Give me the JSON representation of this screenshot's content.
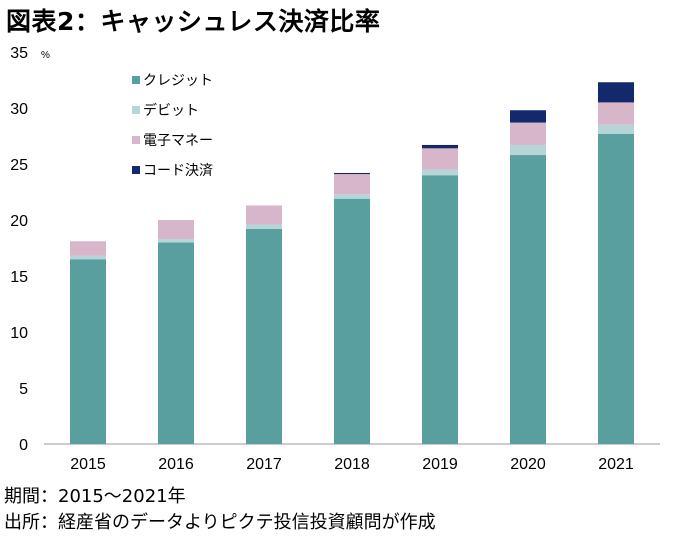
{
  "title": "図表2：キャッシュレス決済比率",
  "footer": {
    "period": "期間：2015～2021年",
    "source": "出所：経産省のデータよりピクテ投信投資顧問が作成"
  },
  "chart_data": {
    "type": "bar",
    "stacked": true,
    "unit": "%",
    "categories": [
      "2015",
      "2016",
      "2017",
      "2018",
      "2019",
      "2020",
      "2021"
    ],
    "ylim": [
      0,
      35
    ],
    "yticks": [
      0,
      5,
      10,
      15,
      20,
      25,
      30,
      35
    ],
    "grid": false,
    "legend_position": "top-left",
    "series": [
      {
        "name": "クレジット",
        "color": "#5a9fa0",
        "values": [
          16.5,
          18.0,
          19.2,
          21.9,
          24.0,
          25.8,
          27.7
        ]
      },
      {
        "name": "デビット",
        "color": "#b5d5d8",
        "values": [
          0.3,
          0.3,
          0.4,
          0.4,
          0.5,
          0.9,
          0.8
        ]
      },
      {
        "name": "電子マネー",
        "color": "#d7b6ca",
        "values": [
          1.3,
          1.7,
          1.7,
          1.8,
          1.9,
          2.0,
          2.0
        ]
      },
      {
        "name": "コード決済",
        "color": "#13296b",
        "values": [
          0.0,
          0.0,
          0.0,
          0.1,
          0.3,
          1.1,
          1.8
        ]
      }
    ]
  }
}
